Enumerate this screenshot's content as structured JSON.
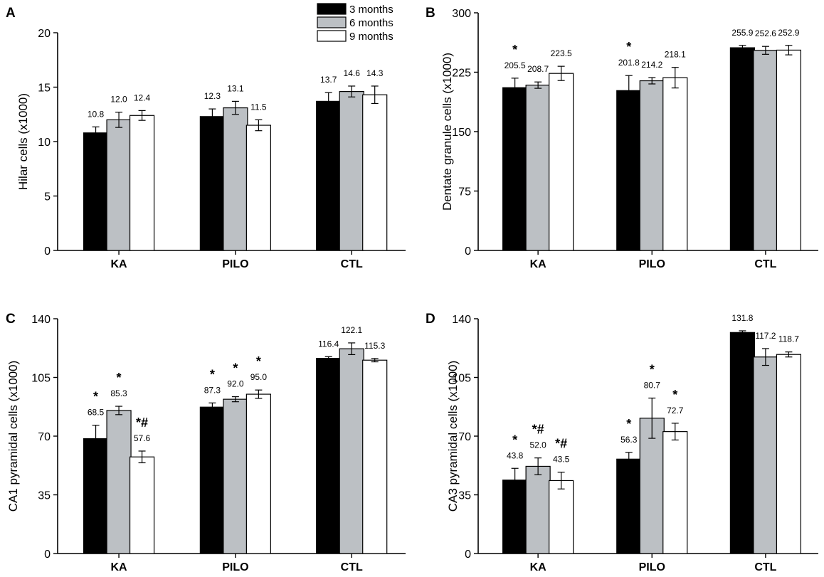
{
  "legend": [
    {
      "name": "3 months",
      "color": "#000000"
    },
    {
      "name": "6 months",
      "color": "#bcc0c4"
    },
    {
      "name": "9 months",
      "color": "#ffffff"
    }
  ],
  "chart_data": [
    {
      "type": "bar",
      "panel": "A",
      "ylabel": "Hilar cells (x1000)",
      "ylim": [
        0,
        20
      ],
      "yticks": [
        0,
        5,
        10,
        15,
        20
      ],
      "categories": [
        "KA",
        "PILO",
        "CTL"
      ],
      "series": [
        {
          "name": "3 months",
          "values": [
            10.8,
            12.3,
            13.7
          ],
          "errors": [
            0.55,
            0.7,
            0.8
          ],
          "value_labels": [
            "10.8",
            "12.3",
            "13.7"
          ],
          "sig": [
            "",
            "",
            ""
          ]
        },
        {
          "name": "6 months",
          "values": [
            12.0,
            13.1,
            14.6
          ],
          "errors": [
            0.7,
            0.6,
            0.5
          ],
          "value_labels": [
            "12.0",
            "13.1",
            "14.6"
          ],
          "sig": [
            "",
            "",
            ""
          ]
        },
        {
          "name": "9 months",
          "values": [
            12.4,
            11.5,
            14.3
          ],
          "errors": [
            0.45,
            0.5,
            0.8
          ],
          "value_labels": [
            "12.4",
            "11.5",
            "14.3"
          ],
          "sig": [
            "",
            "",
            ""
          ]
        }
      ]
    },
    {
      "type": "bar",
      "panel": "B",
      "ylabel": "Dentate granule cells (x1000)",
      "ylim": [
        0,
        300
      ],
      "yticks": [
        0,
        75,
        150,
        225,
        300
      ],
      "categories": [
        "KA",
        "PILO",
        "CTL"
      ],
      "series": [
        {
          "name": "3 months",
          "values": [
            205.5,
            201.8,
            255.9
          ],
          "errors": [
            12,
            19,
            3
          ],
          "value_labels": [
            "205.5",
            "201.8",
            "255.9"
          ],
          "sig": [
            "*",
            "*",
            ""
          ]
        },
        {
          "name": "6 months",
          "values": [
            208.7,
            214.2,
            252.6
          ],
          "errors": [
            4,
            4,
            5
          ],
          "value_labels": [
            "208.7",
            "214.2",
            "252.6"
          ],
          "sig": [
            "",
            "",
            ""
          ]
        },
        {
          "name": "9 months",
          "values": [
            223.5,
            218.1,
            252.9
          ],
          "errors": [
            9,
            13,
            6
          ],
          "value_labels": [
            "223.5",
            "218.1",
            "252.9"
          ],
          "sig": [
            "",
            "",
            ""
          ]
        }
      ]
    },
    {
      "type": "bar",
      "panel": "C",
      "ylabel": "CA1 pyramidal cells (x1000)",
      "ylim": [
        0,
        140
      ],
      "yticks": [
        0,
        35,
        70,
        105,
        140
      ],
      "categories": [
        "KA",
        "PILO",
        "CTL"
      ],
      "series": [
        {
          "name": "3 months",
          "values": [
            68.5,
            87.3,
            116.4
          ],
          "errors": [
            8,
            2.5,
            1.0
          ],
          "value_labels": [
            "68.5",
            "87.3",
            "116.4"
          ],
          "sig": [
            "*",
            "*",
            ""
          ]
        },
        {
          "name": "6 months",
          "values": [
            85.3,
            92.0,
            122.1
          ],
          "errors": [
            2.5,
            1.5,
            3.5
          ],
          "value_labels": [
            "85.3",
            "92.0",
            "122.1"
          ],
          "sig": [
            "*",
            "*",
            ""
          ]
        },
        {
          "name": "9 months",
          "values": [
            57.6,
            95.0,
            115.3
          ],
          "errors": [
            3.5,
            2.5,
            1.0
          ],
          "value_labels": [
            "57.6",
            "95.0",
            "115.3"
          ],
          "sig": [
            "*#",
            "*",
            ""
          ]
        }
      ]
    },
    {
      "type": "bar",
      "panel": "D",
      "ylabel": "CA3 pyramidal cells (x1000)",
      "ylim": [
        0,
        140
      ],
      "yticks": [
        0,
        35,
        70,
        105,
        140
      ],
      "categories": [
        "KA",
        "PILO",
        "CTL"
      ],
      "series": [
        {
          "name": "3 months",
          "values": [
            43.8,
            56.3,
            131.8
          ],
          "errors": [
            7,
            4,
            1.0
          ],
          "value_labels": [
            "43.8",
            "56.3",
            "131.8"
          ],
          "sig": [
            "*",
            "*",
            ""
          ]
        },
        {
          "name": "6 months",
          "values": [
            52.0,
            80.7,
            117.2
          ],
          "errors": [
            5,
            12,
            5
          ],
          "value_labels": [
            "52.0",
            "80.7",
            "117.2"
          ],
          "sig": [
            "*#",
            "*",
            ""
          ]
        },
        {
          "name": "9 months",
          "values": [
            43.5,
            72.7,
            118.7
          ],
          "errors": [
            5,
            5,
            1.5
          ],
          "value_labels": [
            "43.5",
            "72.7",
            "118.7"
          ],
          "sig": [
            "*#",
            "*",
            ""
          ]
        }
      ]
    }
  ]
}
